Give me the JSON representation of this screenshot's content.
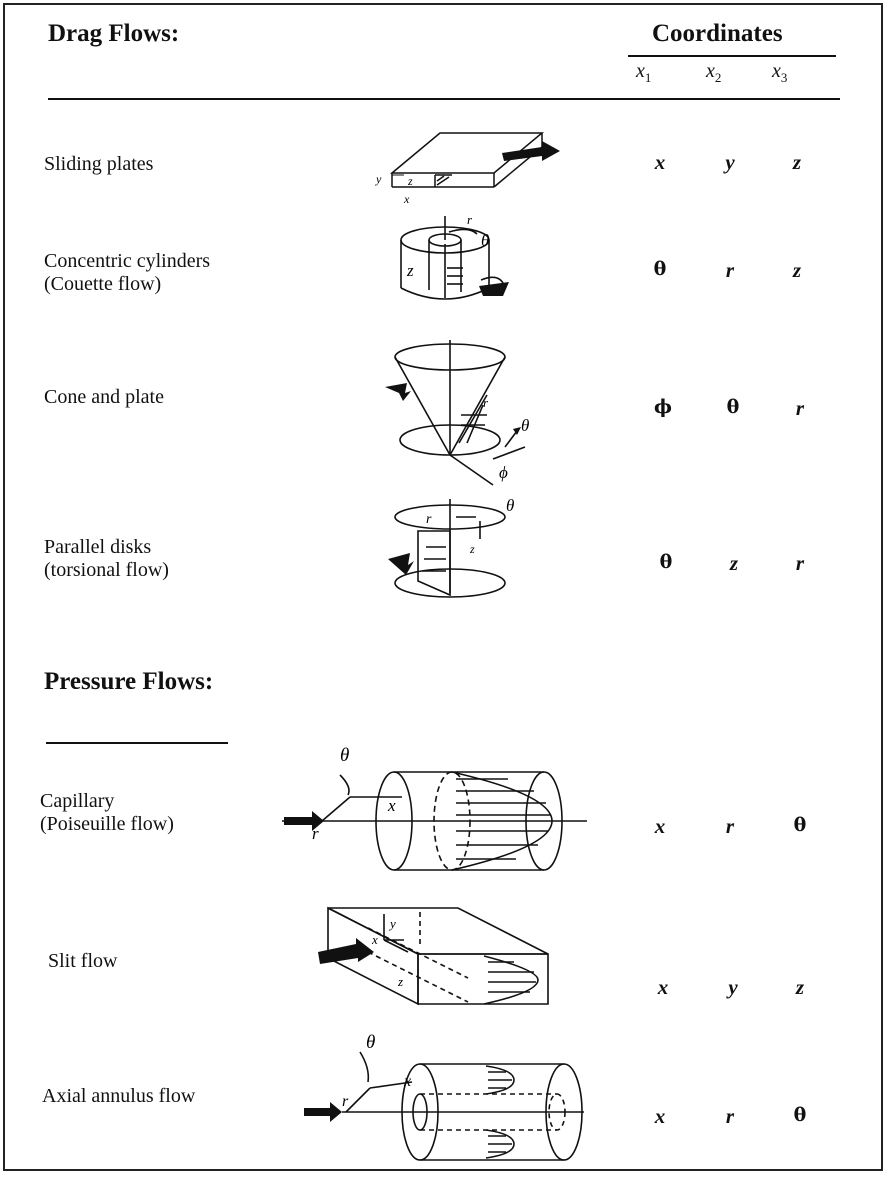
{
  "headers": {
    "drag_title": "Drag Flows:",
    "pressure_title": "Pressure Flows:",
    "coordinates": "Coordinates",
    "x1": "x",
    "x2": "x",
    "x3": "x",
    "x1_sub": "1",
    "x2_sub": "2",
    "x3_sub": "3"
  },
  "drag_rows": [
    {
      "label_1": "Sliding plates",
      "label_2": "",
      "x1": "x",
      "x2": "y",
      "x3": "z"
    },
    {
      "label_1": "Concentric cylinders",
      "label_2": "(Couette flow)",
      "x1": "θ",
      "x2": "r",
      "x3": "z"
    },
    {
      "label_1": "Cone and plate",
      "label_2": "",
      "x1": "ϕ",
      "x2": "θ",
      "x3": "r"
    },
    {
      "label_1": "Parallel disks",
      "label_2": "(torsional flow)",
      "x1": "θ",
      "x2": "z",
      "x3": "r"
    }
  ],
  "pressure_rows": [
    {
      "label_1": "Capillary",
      "label_2": "(Poiseuille flow)",
      "x1": "x",
      "x2": "r",
      "x3": "θ"
    },
    {
      "label_1": "Slit flow",
      "label_2": "",
      "x1": "x",
      "x2": "y",
      "x3": "z"
    },
    {
      "label_1": "Axial annulus flow",
      "label_2": "",
      "x1": "x",
      "x2": "r",
      "x3": "θ"
    }
  ],
  "figure_labels": {
    "sliding": [
      "y",
      "z",
      "x"
    ],
    "couette": [
      "r",
      "θ",
      "z"
    ],
    "cone": [
      "r",
      "θ",
      "ϕ"
    ],
    "disks": [
      "r",
      "θ",
      "z"
    ],
    "capillary": [
      "θ",
      "r",
      "x"
    ],
    "slit": [
      "y",
      "x",
      "z"
    ],
    "annulus": [
      "θ",
      "r",
      "x"
    ]
  }
}
